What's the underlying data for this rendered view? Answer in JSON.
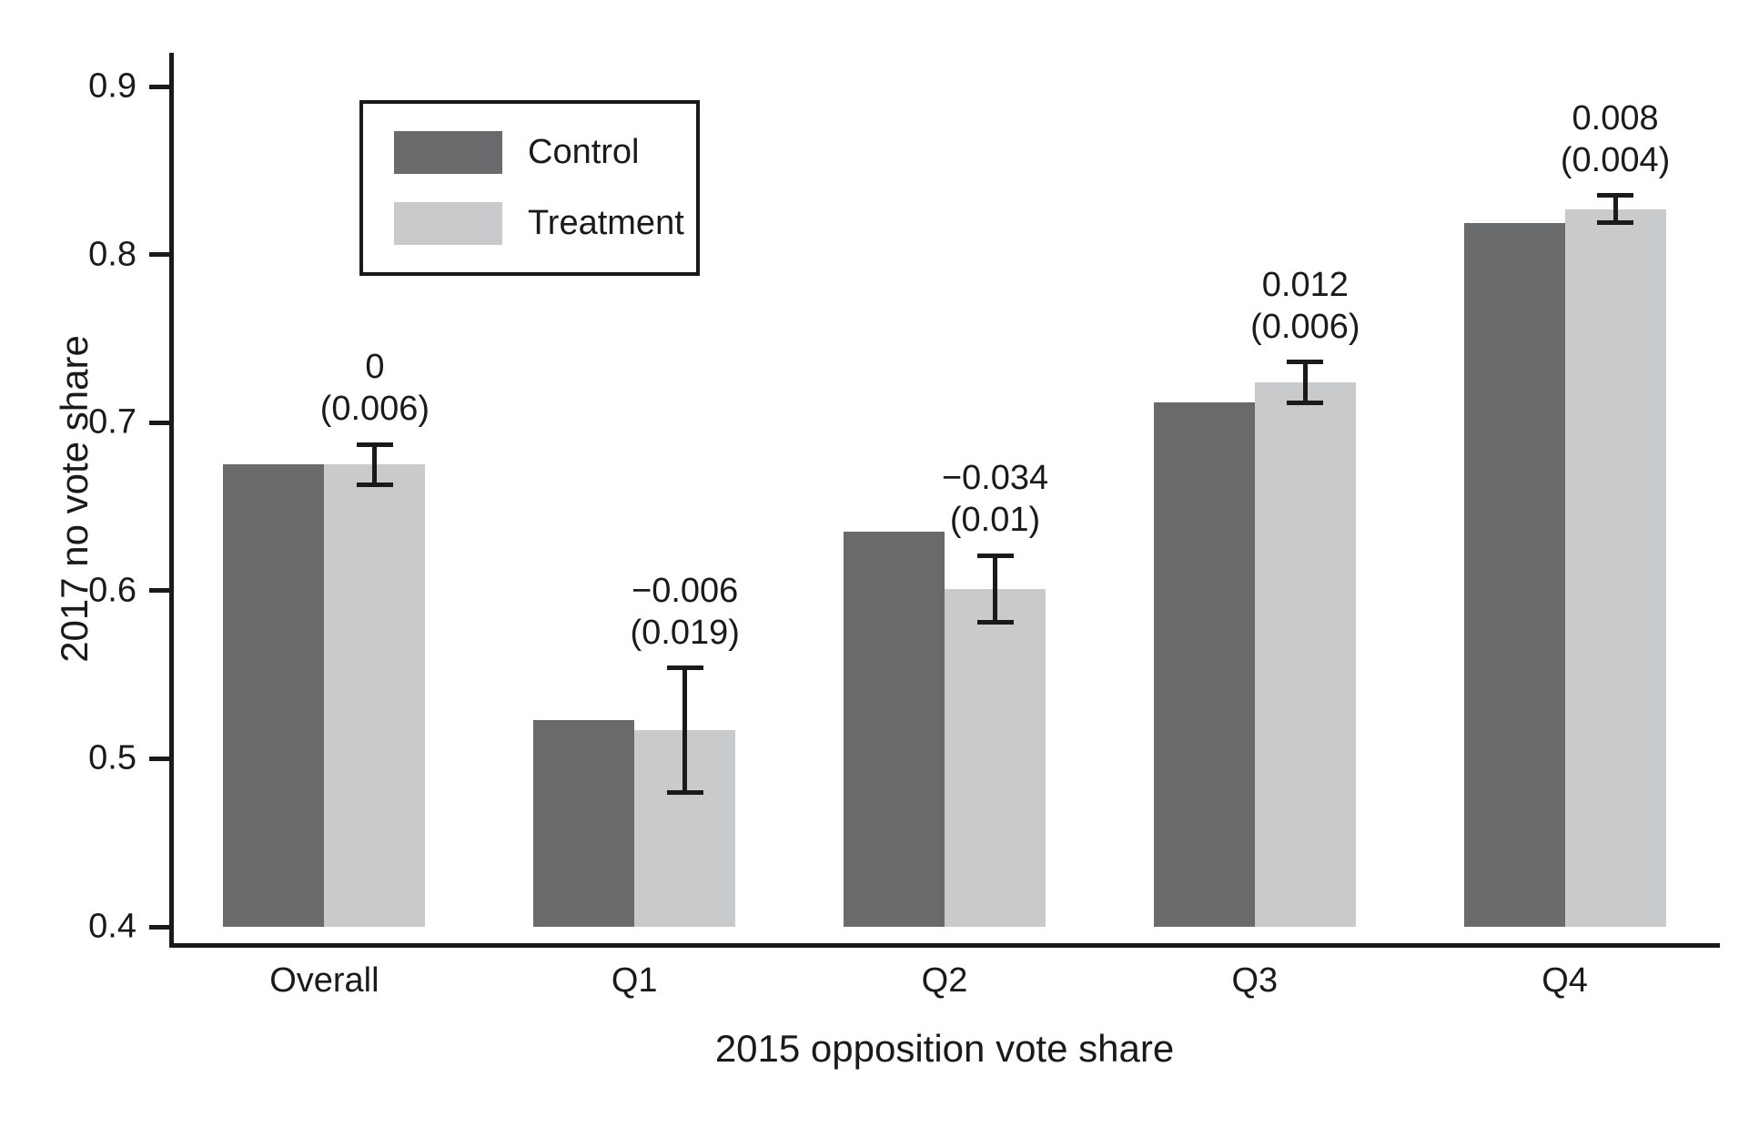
{
  "chart_data": {
    "type": "bar",
    "title": "",
    "xlabel": "2015 opposition vote share",
    "ylabel": "2017 no vote share",
    "ylim": [
      0.4,
      0.9
    ],
    "ytick_values": [
      0.9,
      0.8,
      0.7,
      0.6,
      0.5,
      0.4
    ],
    "ytick_labels": [
      "0.9",
      "0.8",
      "0.7",
      "0.6",
      "0.5",
      "0.4"
    ],
    "categories": [
      "Overall",
      "Q1",
      "Q2",
      "Q3",
      "Q4"
    ],
    "series": [
      {
        "name": "Control",
        "values": [
          0.675,
          0.523,
          0.635,
          0.712,
          0.819
        ]
      },
      {
        "name": "Treatment",
        "values": [
          0.675,
          0.517,
          0.601,
          0.724,
          0.827
        ]
      }
    ],
    "error_bars": {
      "on_series": "Treatment",
      "low": [
        0.663,
        0.48,
        0.581,
        0.712,
        0.819
      ],
      "high": [
        0.687,
        0.554,
        0.621,
        0.736,
        0.835
      ]
    },
    "annotations": [
      {
        "line1": "0",
        "line2": "(0.006)"
      },
      {
        "line1": "−0.006",
        "line2": "(0.019)"
      },
      {
        "line1": "−0.034",
        "line2": "(0.01)"
      },
      {
        "line1": "0.012",
        "line2": "(0.006)"
      },
      {
        "line1": "0.008",
        "line2": "(0.004)"
      }
    ],
    "legend": {
      "position": "top-left",
      "entries": [
        "Control",
        "Treatment"
      ]
    },
    "grid": "off",
    "colors": {
      "control": "#696a6c",
      "treatment": "#c9cacb",
      "axis": "#1a1a1a",
      "background": "#ffffff"
    }
  }
}
